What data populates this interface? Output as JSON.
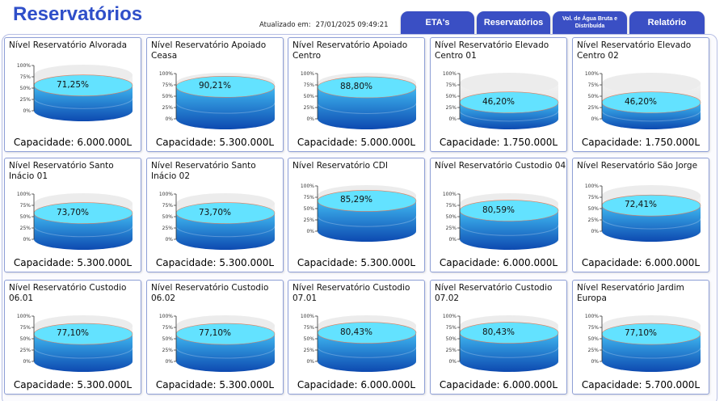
{
  "header": {
    "title": "Reservatórios",
    "updated_label": "Atualizado em:",
    "updated_value": "27/01/2025 09:49:21"
  },
  "tabs": [
    {
      "label": "ETA's"
    },
    {
      "label": "Reservatórios"
    },
    {
      "label": "Vol. de Água Bruta e Distribuída"
    },
    {
      "label": "Relatório"
    }
  ],
  "gauge_ticks": [
    "100%",
    "75%",
    "50%",
    "25%",
    "0%"
  ],
  "colors": {
    "accent": "#3a4fc4",
    "water_light": "#5fe0ff",
    "water_dark": "#0f4fb8",
    "tank_empty": "#e4e4e4"
  },
  "reservoirs": [
    {
      "title": "Nível Reservatório Alvorada",
      "percent": "71,25%",
      "level": 0.7125,
      "capacity": "Capacidade: 6.000.000L"
    },
    {
      "title": "Nível Reservatório Apoiado Ceasa",
      "percent": "90,21%",
      "level": 0.9021,
      "capacity": "Capacidade: 5.300.000L"
    },
    {
      "title": "Nível Reservatório Apoiado Centro",
      "percent": "88,80%",
      "level": 0.888,
      "capacity": "Capacidade: 5.000.000L"
    },
    {
      "title": "Nível Reservatório Elevado Centro 01",
      "percent": "46,20%",
      "level": 0.462,
      "capacity": "Capacidade: 1.750.000L"
    },
    {
      "title": "Nível Reservatório Elevado Centro 02",
      "percent": "46,20%",
      "level": 0.462,
      "capacity": "Capacidade: 1.750.000L"
    },
    {
      "title": "Nível Reservatório Santo Inácio 01",
      "percent": "73,70%",
      "level": 0.737,
      "capacity": "Capacidade: 5.300.000L"
    },
    {
      "title": "Nível Reservatório Santo Inácio 02",
      "percent": "73,70%",
      "level": 0.737,
      "capacity": "Capacidade: 5.300.000L"
    },
    {
      "title": "Nível Reservatório CDI",
      "percent": "85,29%",
      "level": 0.8529,
      "capacity": "Capacidade: 5.300.000L"
    },
    {
      "title": "Nível Reservatório Custodio 04",
      "percent": "80,59%",
      "level": 0.8059,
      "capacity": "Capacidade: 6.000.000L"
    },
    {
      "title": "Nível Reservatório São Jorge",
      "percent": "72,41%",
      "level": 0.7241,
      "capacity": "Capacidade: 6.000.000L"
    },
    {
      "title": "Nível Reservatório Custodio 06.01",
      "percent": "77,10%",
      "level": 0.771,
      "capacity": "Capacidade: 5.300.000L"
    },
    {
      "title": "Nível Reservatório Custodio 06.02",
      "percent": "77,10%",
      "level": 0.771,
      "capacity": "Capacidade: 5.300.000L"
    },
    {
      "title": "Nível Reservatório Custodio 07.01",
      "percent": "80,43%",
      "level": 0.8043,
      "capacity": "Capacidade: 6.000.000L"
    },
    {
      "title": "Nível Reservatório Custodio 07.02",
      "percent": "80,43%",
      "level": 0.8043,
      "capacity": "Capacidade: 6.000.000L"
    },
    {
      "title": "Nível Reservatório Jardim Europa",
      "percent": "77,10%",
      "level": 0.771,
      "capacity": "Capacidade: 5.700.000L"
    }
  ]
}
